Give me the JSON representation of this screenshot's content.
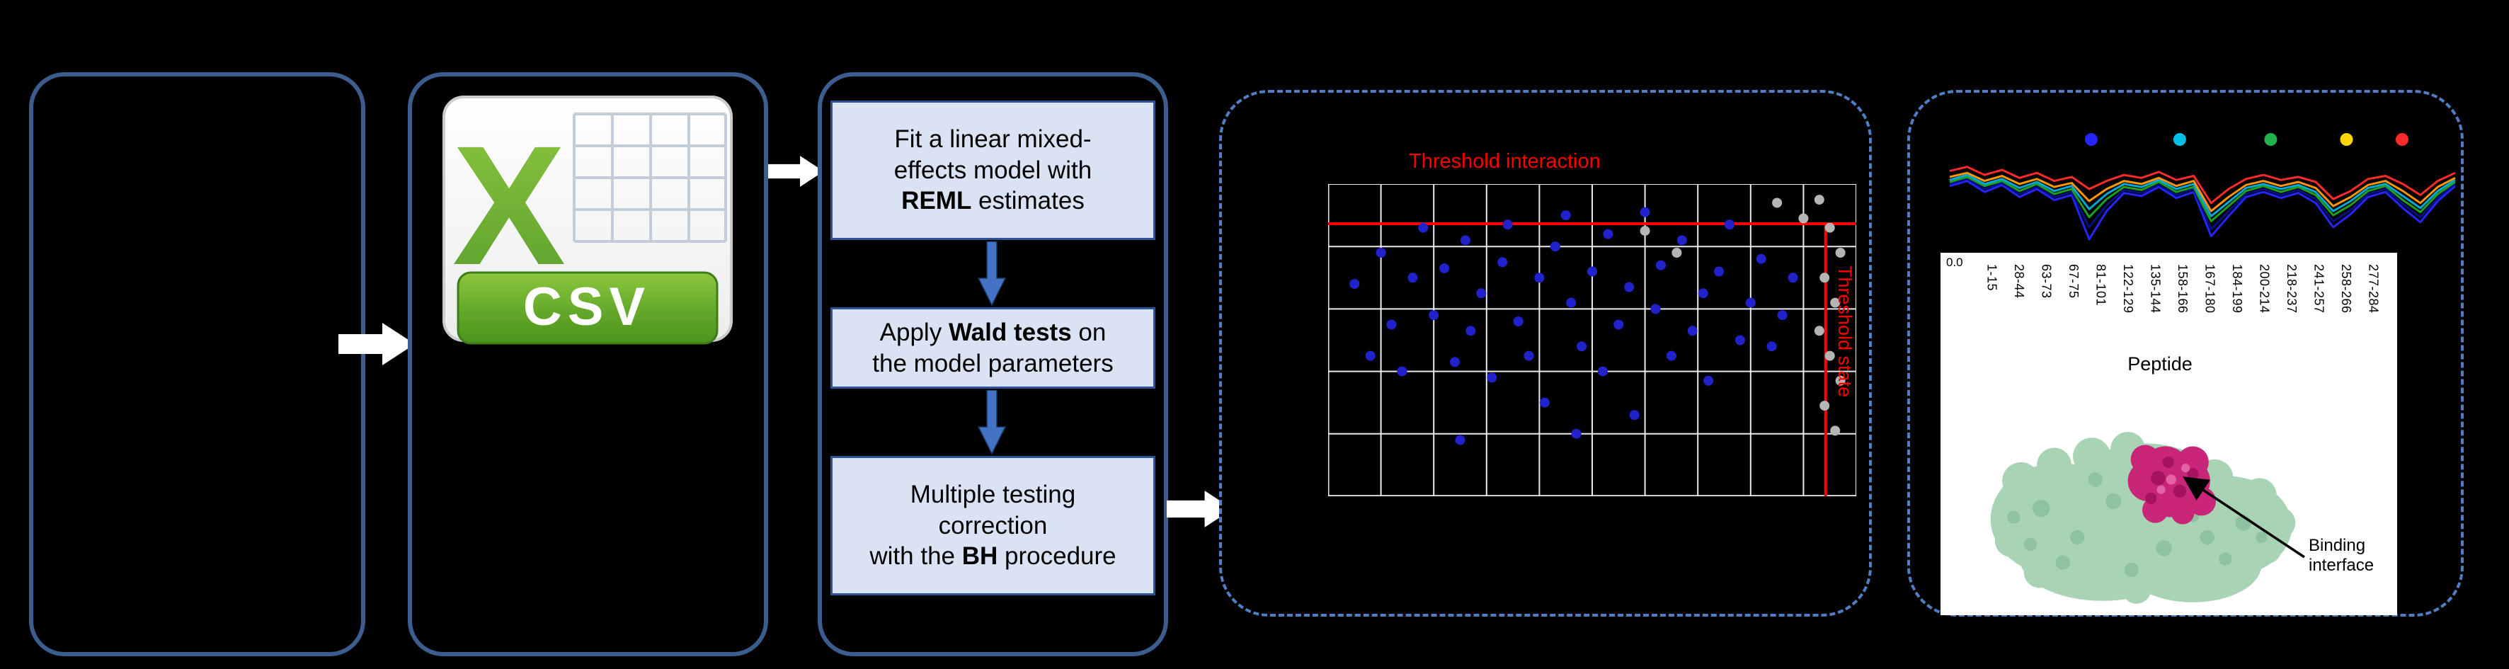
{
  "colors": {
    "background": "#000000",
    "solid_panel_border": "#3d5d8f",
    "dashed_panel_border": "#4f7ec4",
    "step_box_fill": "#dae3f3",
    "step_box_border": "#2f5496",
    "flow_arrow": "#ffffff",
    "down_arrow": "#4472c4",
    "threshold_red": "#ff0000",
    "csv_green": "#67ab2c",
    "protein_surface": "#a9d3b5",
    "binding_site": "#c92579"
  },
  "csv_panel": {
    "icon_letter": "X",
    "icon_label": "CSV"
  },
  "statistics_panel": {
    "box1": {
      "l1": "Fit a linear mixed-",
      "l2": "effects model with",
      "l3_bold": "REML",
      "l3_rest": " estimates"
    },
    "box2": {
      "l1_pre": "Apply ",
      "l1_bold": "Wald tests",
      "l1_post": " on",
      "l2": "the model parameters"
    },
    "box3": {
      "l1": "Multiple testing",
      "l2": "correction",
      "l3_pre": "with the ",
      "l3_bold": "BH",
      "l3_post": " procedure"
    }
  },
  "scatter_panel": {
    "threshold_top_label": "Threshold interaction",
    "threshold_side_label": "Threshold state"
  },
  "results_panel": {
    "y_tick": "0.0",
    "peptide_labels": [
      "1-15",
      "28-44",
      "63-73",
      "67-75",
      "81-101",
      "122-129",
      "135-144",
      "158-166",
      "167-180",
      "184-199",
      "200-214",
      "218-237",
      "241-257",
      "258-266",
      "277-284"
    ],
    "axis_label": "Peptide",
    "binding_label": "Binding interface"
  },
  "chart_data": [
    {
      "type": "scatter",
      "title": "",
      "xlabel": "",
      "ylabel": "",
      "coords": "fraction of plot area (0,0 = top-left)",
      "grid": {
        "v": 10,
        "h": 5
      },
      "thresholds": {
        "y_frac": 0.127,
        "x_frac": 0.942,
        "y_label": "Threshold interaction",
        "x_label": "Threshold state",
        "color": "#ff0000"
      },
      "series": [
        {
          "name": "blue_points",
          "color": "#2222cc",
          "points": [
            [
              0.05,
              0.32
            ],
            [
              0.08,
              0.55
            ],
            [
              0.1,
              0.22
            ],
            [
              0.12,
              0.45
            ],
            [
              0.14,
              0.6
            ],
            [
              0.16,
              0.3
            ],
            [
              0.18,
              0.14
            ],
            [
              0.2,
              0.42
            ],
            [
              0.22,
              0.27
            ],
            [
              0.24,
              0.57
            ],
            [
              0.26,
              0.18
            ],
            [
              0.27,
              0.47
            ],
            [
              0.29,
              0.35
            ],
            [
              0.31,
              0.62
            ],
            [
              0.33,
              0.25
            ],
            [
              0.34,
              0.13
            ],
            [
              0.36,
              0.44
            ],
            [
              0.38,
              0.55
            ],
            [
              0.4,
              0.3
            ],
            [
              0.41,
              0.7
            ],
            [
              0.43,
              0.2
            ],
            [
              0.45,
              0.1
            ],
            [
              0.46,
              0.38
            ],
            [
              0.48,
              0.52
            ],
            [
              0.5,
              0.28
            ],
            [
              0.52,
              0.6
            ],
            [
              0.53,
              0.16
            ],
            [
              0.55,
              0.45
            ],
            [
              0.57,
              0.33
            ],
            [
              0.58,
              0.74
            ],
            [
              0.6,
              0.09
            ],
            [
              0.62,
              0.4
            ],
            [
              0.63,
              0.26
            ],
            [
              0.65,
              0.55
            ],
            [
              0.67,
              0.18
            ],
            [
              0.69,
              0.47
            ],
            [
              0.71,
              0.35
            ],
            [
              0.72,
              0.63
            ],
            [
              0.74,
              0.28
            ],
            [
              0.76,
              0.13
            ],
            [
              0.78,
              0.5
            ],
            [
              0.8,
              0.38
            ],
            [
              0.82,
              0.24
            ],
            [
              0.84,
              0.52
            ],
            [
              0.86,
              0.42
            ],
            [
              0.88,
              0.3
            ],
            [
              0.25,
              0.82
            ],
            [
              0.47,
              0.8
            ]
          ]
        },
        {
          "name": "grey_points",
          "color": "#b5b5b5",
          "points": [
            [
              0.6,
              0.15
            ],
            [
              0.66,
              0.22
            ],
            [
              0.85,
              0.06
            ],
            [
              0.9,
              0.11
            ],
            [
              0.93,
              0.05
            ],
            [
              0.95,
              0.14
            ],
            [
              0.97,
              0.22
            ],
            [
              0.94,
              0.3
            ],
            [
              0.96,
              0.38
            ],
            [
              0.93,
              0.47
            ],
            [
              0.95,
              0.55
            ],
            [
              0.97,
              0.63
            ],
            [
              0.94,
              0.71
            ],
            [
              0.96,
              0.79
            ]
          ]
        }
      ]
    },
    {
      "type": "line",
      "xlabel": "Peptide",
      "x_categories": [
        "1-15",
        "28-44",
        "63-73",
        "67-75",
        "81-101",
        "122-129",
        "135-144",
        "158-166",
        "167-180",
        "184-199",
        "200-214",
        "218-237",
        "241-257",
        "258-266",
        "277-284"
      ],
      "y_baseline_tick": "0.0",
      "coords": "fraction of plot height (0 = top, 1 = baseline 0.0)",
      "series": [
        {
          "name": "series-blue",
          "color": "#2525ff",
          "values": [
            0.35,
            0.3,
            0.41,
            0.34,
            0.46,
            0.38,
            0.49,
            0.44,
            0.88,
            0.6,
            0.42,
            0.45,
            0.36,
            0.47,
            0.41,
            0.85,
            0.65,
            0.46,
            0.41,
            0.47,
            0.42,
            0.52,
            0.76,
            0.63,
            0.46,
            0.41,
            0.57,
            0.71,
            0.5,
            0.35
          ]
        },
        {
          "name": "series-navy",
          "color": "#00127f",
          "values": [
            0.33,
            0.28,
            0.38,
            0.32,
            0.43,
            0.36,
            0.46,
            0.41,
            0.76,
            0.54,
            0.39,
            0.42,
            0.34,
            0.44,
            0.38,
            0.78,
            0.6,
            0.43,
            0.38,
            0.44,
            0.39,
            0.48,
            0.7,
            0.59,
            0.43,
            0.38,
            0.53,
            0.66,
            0.47,
            0.33
          ]
        },
        {
          "name": "series-green",
          "color": "#1fa01f",
          "values": [
            0.31,
            0.26,
            0.35,
            0.3,
            0.4,
            0.33,
            0.43,
            0.38,
            0.66,
            0.48,
            0.36,
            0.39,
            0.31,
            0.41,
            0.36,
            0.7,
            0.55,
            0.4,
            0.35,
            0.41,
            0.36,
            0.44,
            0.64,
            0.54,
            0.4,
            0.35,
            0.49,
            0.61,
            0.43,
            0.31
          ]
        },
        {
          "name": "series-cyan",
          "color": "#00a8d8",
          "values": [
            0.29,
            0.24,
            0.33,
            0.28,
            0.37,
            0.31,
            0.4,
            0.35,
            0.58,
            0.43,
            0.33,
            0.36,
            0.29,
            0.38,
            0.33,
            0.65,
            0.51,
            0.37,
            0.33,
            0.38,
            0.34,
            0.41,
            0.6,
            0.5,
            0.37,
            0.33,
            0.45,
            0.57,
            0.4,
            0.29
          ]
        },
        {
          "name": "series-orange",
          "color": "#ff9500",
          "values": [
            0.26,
            0.22,
            0.3,
            0.25,
            0.33,
            0.28,
            0.36,
            0.32,
            0.5,
            0.38,
            0.3,
            0.33,
            0.27,
            0.35,
            0.3,
            0.6,
            0.46,
            0.34,
            0.3,
            0.35,
            0.31,
            0.37,
            0.55,
            0.46,
            0.34,
            0.3,
            0.4,
            0.52,
            0.36,
            0.27
          ]
        },
        {
          "name": "series-red",
          "color": "#ff2a2a",
          "values": [
            0.2,
            0.16,
            0.24,
            0.19,
            0.27,
            0.22,
            0.3,
            0.26,
            0.38,
            0.3,
            0.24,
            0.27,
            0.21,
            0.29,
            0.25,
            0.52,
            0.38,
            0.28,
            0.24,
            0.29,
            0.26,
            0.31,
            0.48,
            0.4,
            0.28,
            0.25,
            0.33,
            0.44,
            0.3,
            0.22
          ]
        }
      ],
      "markers": [
        {
          "color": "#2525ff",
          "x_frac": 0.28
        },
        {
          "color": "#00c0e8",
          "x_frac": 0.455
        },
        {
          "color": "#22b14c",
          "x_frac": 0.635
        },
        {
          "color": "#ffd400",
          "x_frac": 0.785
        },
        {
          "color": "#ff2a2a",
          "x_frac": 0.895
        }
      ]
    }
  ]
}
